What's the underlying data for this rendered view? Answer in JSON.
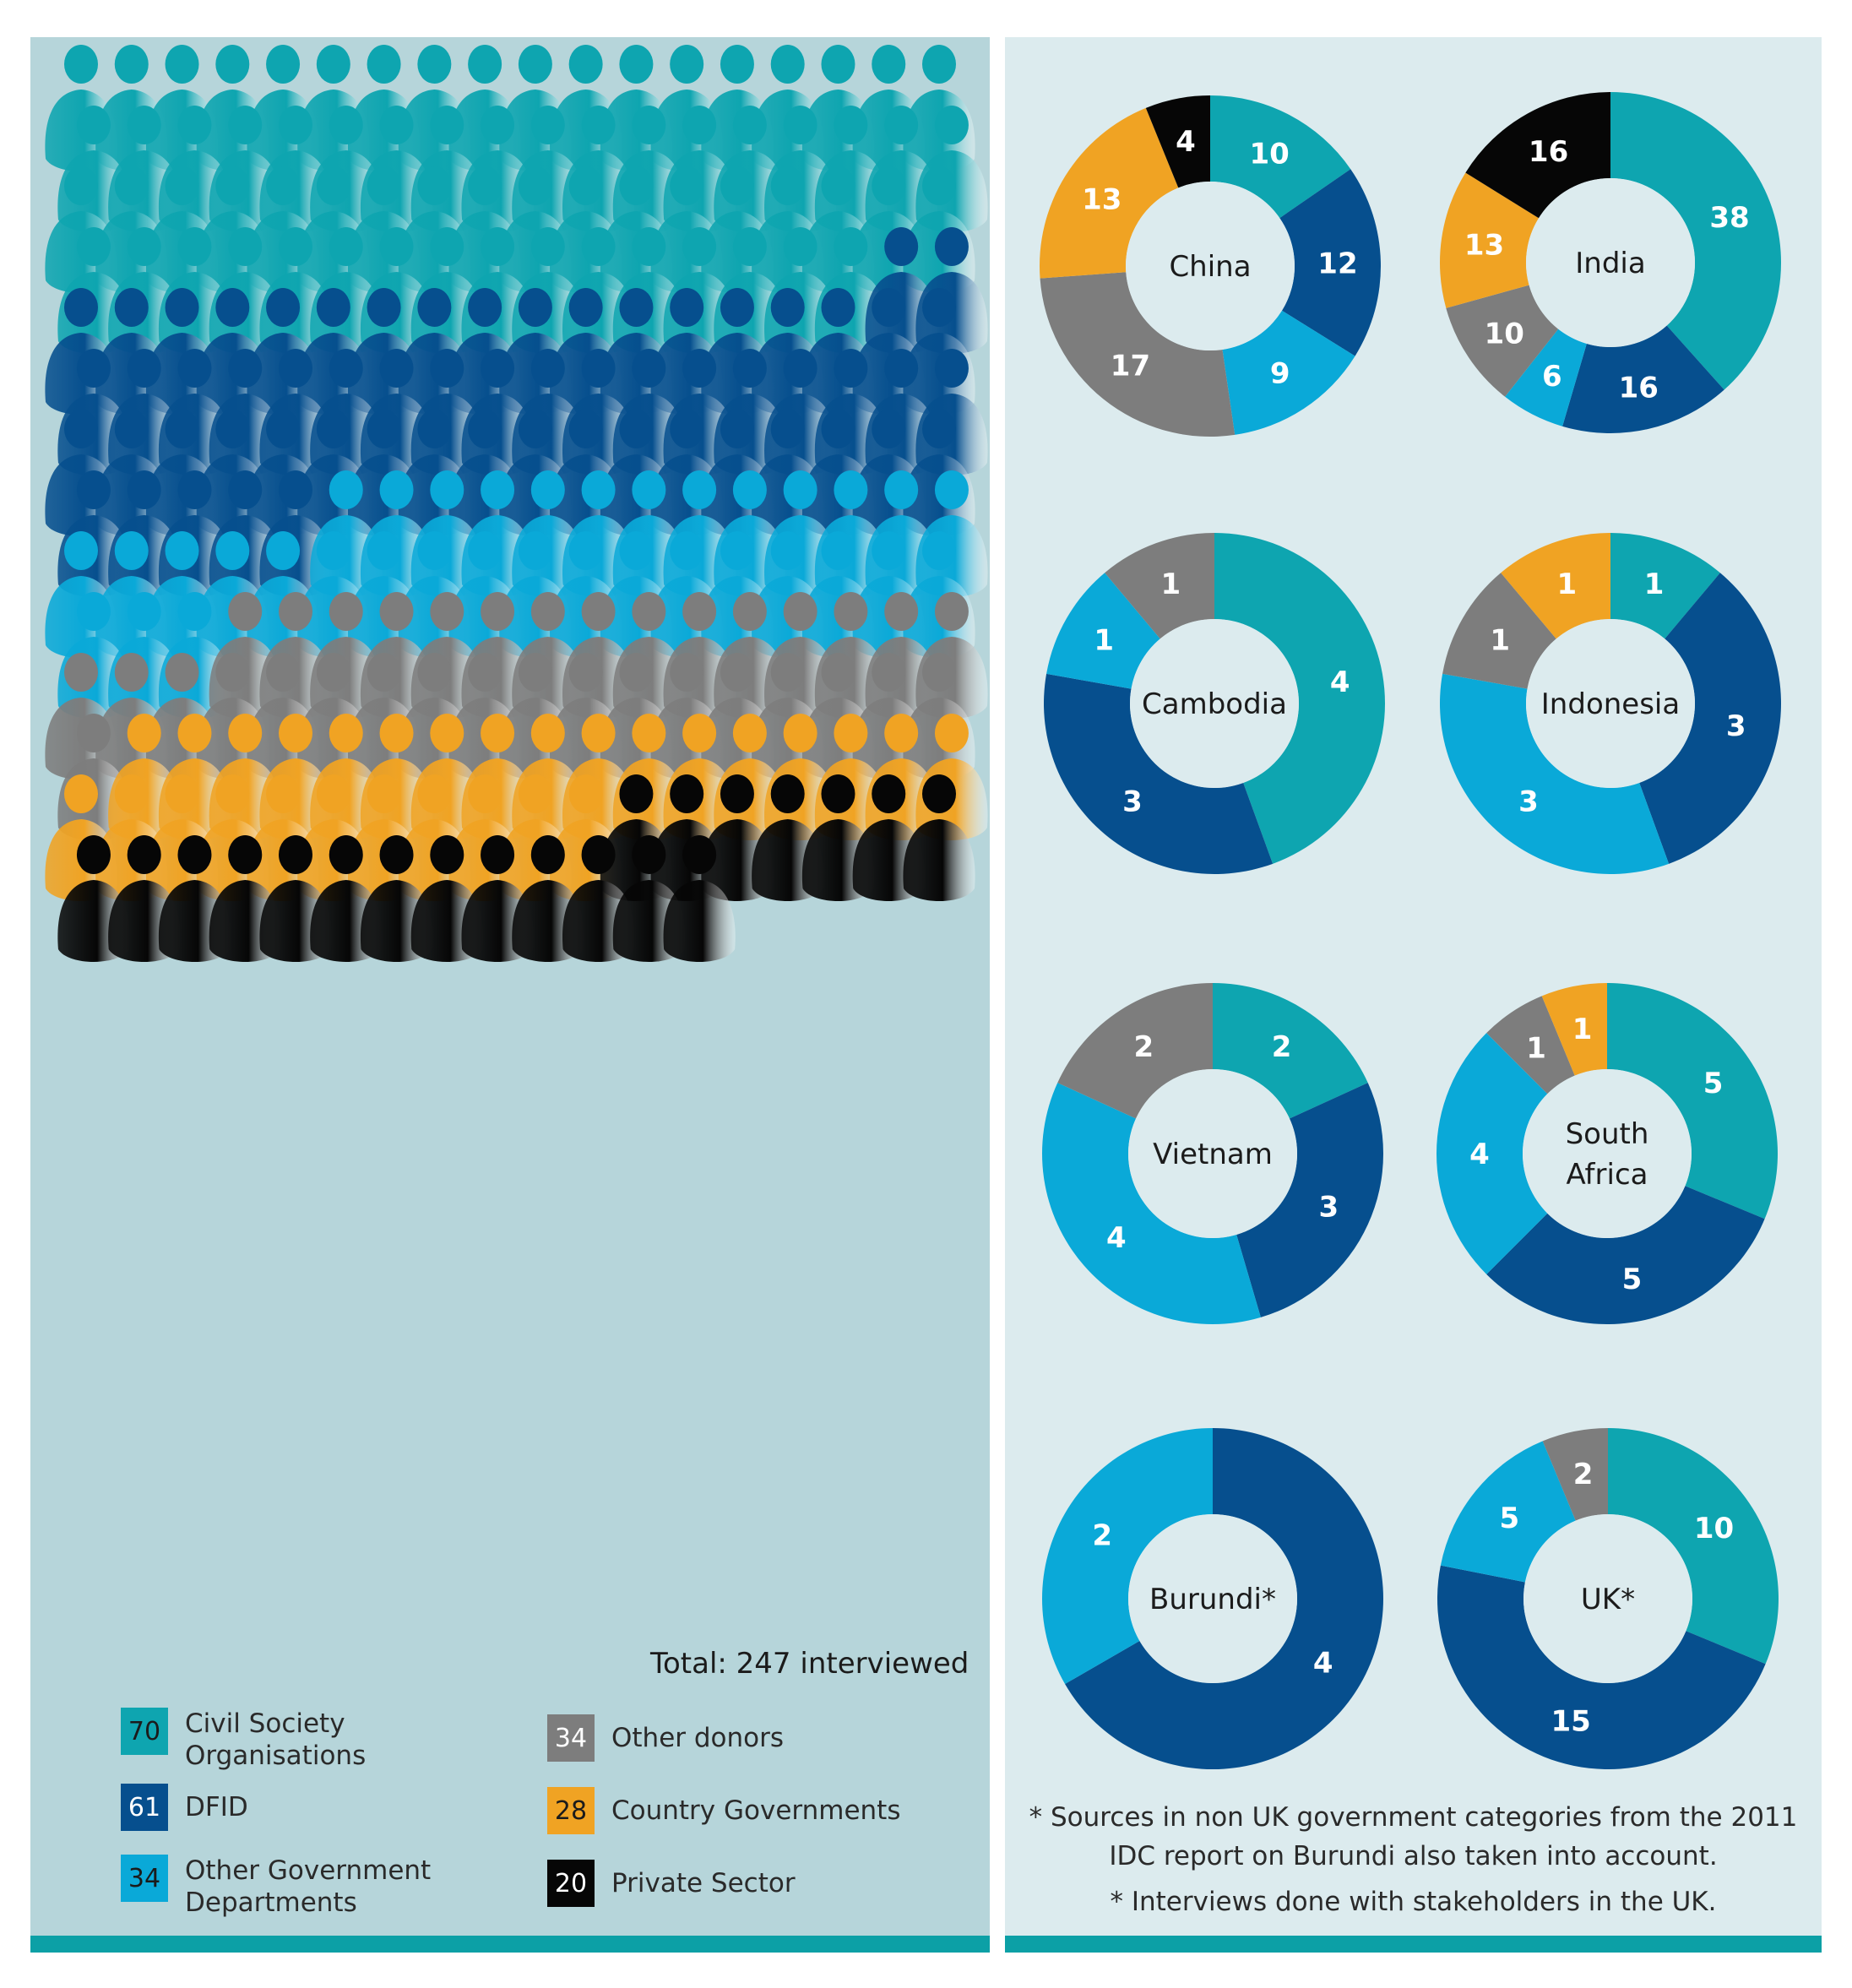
{
  "colors": {
    "civil_society": "#0ea5b0",
    "dfid": "#064f8e",
    "other_gov": "#0aa9d8",
    "other_donors": "#7d7d7d",
    "country_gov": "#f0a323",
    "private_sector": "#060606"
  },
  "total_label": "Total: 247 interviewed",
  "legend": [
    {
      "key": "civil_society",
      "count": "70",
      "label": "Civil Society Organisations"
    },
    {
      "key": "dfid",
      "count": "61",
      "label": "DFID"
    },
    {
      "key": "other_gov",
      "count": "34",
      "label": "Other Government Departments"
    },
    {
      "key": "other_donors",
      "count": "34",
      "label": "Other donors"
    },
    {
      "key": "country_gov",
      "count": "28",
      "label": "Country Governments"
    },
    {
      "key": "private_sector",
      "count": "20",
      "label": "Private Sector"
    }
  ],
  "chart_data": [
    {
      "type": "pictogram",
      "categories": [
        "Civil Society Organisations",
        "DFID",
        "Other Government Departments",
        "Other donors",
        "Country Governments",
        "Private Sector"
      ],
      "values": [
        70,
        61,
        34,
        34,
        28,
        20
      ],
      "total": 247
    },
    {
      "type": "pie",
      "title": "China",
      "categories": [
        "Civil Society Organisations",
        "DFID",
        "Other Government Departments",
        "Other donors",
        "Country Governments",
        "Private Sector"
      ],
      "values": [
        10,
        12,
        9,
        17,
        13,
        4
      ]
    },
    {
      "type": "pie",
      "title": "India",
      "categories": [
        "Civil Society Organisations",
        "DFID",
        "Other Government Departments",
        "Other donors",
        "Country Governments",
        "Private Sector"
      ],
      "values": [
        38,
        16,
        6,
        10,
        13,
        16
      ]
    },
    {
      "type": "pie",
      "title": "Cambodia",
      "categories": [
        "Civil Society Organisations",
        "DFID",
        "Other Government Departments",
        "Other donors"
      ],
      "values": [
        4,
        3,
        1,
        1
      ]
    },
    {
      "type": "pie",
      "title": "Indonesia",
      "categories": [
        "Civil Society Organisations",
        "DFID",
        "Other Government Departments",
        "Other donors",
        "Country Governments"
      ],
      "values": [
        1,
        3,
        3,
        1,
        1
      ]
    },
    {
      "type": "pie",
      "title": "Vietnam",
      "categories": [
        "Civil Society Organisations",
        "DFID",
        "Other Government Departments",
        "Other donors"
      ],
      "values": [
        2,
        3,
        4,
        2
      ]
    },
    {
      "type": "pie",
      "title": "South Africa",
      "categories": [
        "Civil Society Organisations",
        "DFID",
        "Other Government Departments",
        "Other donors",
        "Country Governments"
      ],
      "values": [
        5,
        5,
        4,
        1,
        1
      ]
    },
    {
      "type": "pie",
      "title": "Burundi*",
      "categories": [
        "DFID",
        "Other Government Departments"
      ],
      "values": [
        4,
        2
      ]
    },
    {
      "type": "pie",
      "title": "UK*",
      "categories": [
        "Civil Society Organisations",
        "DFID",
        "Other Government Departments",
        "Other donors"
      ],
      "values": [
        10,
        15,
        5,
        2
      ]
    }
  ],
  "footnotes": {
    "line1": "* Sources in non UK government categories from the 2011",
    "line2": "IDC report on Burundi also taken into account.",
    "line3": "* Interviews done with stakeholders in the UK."
  }
}
